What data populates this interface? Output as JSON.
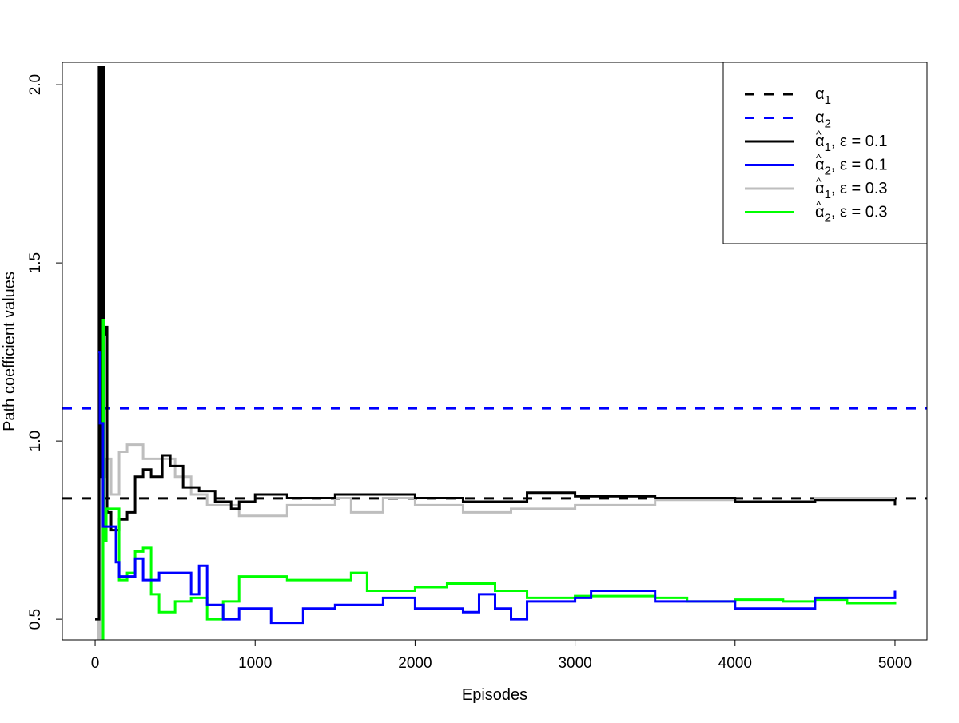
{
  "chart_data": {
    "type": "line",
    "title": "",
    "xlabel": "Episodes",
    "ylabel": "Path coefficient values",
    "xlim": [
      -205,
      5200
    ],
    "ylim": [
      0.442,
      2.063
    ],
    "xticks": [
      0,
      1000,
      2000,
      3000,
      4000,
      5000
    ],
    "xtick_labels": [
      "0",
      "1000",
      "2000",
      "3000",
      "4000",
      "5000"
    ],
    "yticks": [
      0.5,
      1.0,
      1.5,
      2.0
    ],
    "ytick_labels": [
      "0.5",
      "1.0",
      "1.5",
      "2.0"
    ],
    "grid": false,
    "legend_position": "top-right",
    "hlines": [
      {
        "name": "α1",
        "sub": "1",
        "value": 0.839,
        "color": "#000000",
        "dash": true
      },
      {
        "name": "α2",
        "sub": "2",
        "value": 1.092,
        "color": "#0000FF",
        "dash": true
      }
    ],
    "series": [
      {
        "name": "α̂1, ε = 0.1",
        "sub": "1",
        "eps": "0.1",
        "color": "#000000",
        "x": [
          0,
          25,
          35,
          45,
          55,
          65,
          75,
          100,
          150,
          200,
          250,
          300,
          350,
          420,
          470,
          550,
          650,
          750,
          850,
          900,
          1000,
          1200,
          1500,
          1700,
          2000,
          2300,
          2700,
          3000,
          3500,
          4000,
          4500,
          5000
        ],
        "y": [
          0.5,
          2.05,
          0.9,
          2.05,
          1.3,
          1.32,
          0.8,
          0.75,
          0.78,
          0.8,
          0.9,
          0.92,
          0.9,
          0.96,
          0.93,
          0.87,
          0.86,
          0.83,
          0.81,
          0.83,
          0.85,
          0.84,
          0.85,
          0.85,
          0.84,
          0.83,
          0.855,
          0.845,
          0.84,
          0.83,
          0.835,
          0.82
        ]
      },
      {
        "name": "α̂2, ε = 0.1",
        "sub": "2",
        "eps": "0.1",
        "color": "#0000FF",
        "x": [
          20,
          30,
          50,
          100,
          130,
          150,
          200,
          250,
          300,
          400,
          550,
          600,
          650,
          700,
          800,
          900,
          1000,
          1100,
          1300,
          1300,
          1500,
          1800,
          2000,
          2300,
          2400,
          2500,
          2600,
          2700,
          3000,
          3100,
          3500,
          4000,
          4500,
          5000
        ],
        "y": [
          1.25,
          1.05,
          0.76,
          0.76,
          0.66,
          0.62,
          0.62,
          0.67,
          0.61,
          0.63,
          0.63,
          0.57,
          0.65,
          0.54,
          0.5,
          0.53,
          0.53,
          0.49,
          0.49,
          0.53,
          0.54,
          0.56,
          0.53,
          0.52,
          0.57,
          0.53,
          0.5,
          0.55,
          0.56,
          0.58,
          0.55,
          0.53,
          0.56,
          0.58
        ]
      },
      {
        "name": "α̂1, ε = 0.3",
        "sub": "1",
        "eps": "0.3",
        "color": "#BEBEBE",
        "x": [
          0,
          20,
          30,
          40,
          60,
          100,
          150,
          200,
          300,
          400,
          500,
          600,
          700,
          800,
          900,
          1000,
          1200,
          1500,
          1600,
          1800,
          2000,
          2300,
          2600,
          3000,
          3500,
          4000,
          4500,
          5000
        ],
        "y": [
          0.44,
          2.05,
          0.44,
          0.9,
          0.95,
          0.85,
          0.97,
          0.99,
          0.95,
          0.95,
          0.9,
          0.85,
          0.82,
          0.82,
          0.79,
          0.79,
          0.82,
          0.84,
          0.8,
          0.84,
          0.82,
          0.8,
          0.81,
          0.82,
          0.835,
          0.83,
          0.84,
          0.84
        ]
      },
      {
        "name": "α̂2, ε = 0.3",
        "sub": "2",
        "eps": "0.3",
        "color": "#00FF00",
        "x": [
          40,
          50,
          55,
          70,
          130,
          150,
          200,
          250,
          300,
          350,
          400,
          500,
          600,
          700,
          800,
          900,
          1000,
          1200,
          1500,
          1600,
          1700,
          1800,
          2000,
          2200,
          2500,
          2700,
          3000,
          3500,
          3700,
          4000,
          4300,
          4500,
          4700,
          5000
        ],
        "y": [
          0.44,
          1.34,
          0.72,
          0.81,
          0.81,
          0.61,
          0.63,
          0.69,
          0.7,
          0.57,
          0.52,
          0.55,
          0.56,
          0.5,
          0.55,
          0.62,
          0.62,
          0.61,
          0.61,
          0.63,
          0.58,
          0.58,
          0.59,
          0.6,
          0.58,
          0.56,
          0.565,
          0.56,
          0.55,
          0.555,
          0.55,
          0.555,
          0.545,
          0.55
        ]
      }
    ]
  }
}
